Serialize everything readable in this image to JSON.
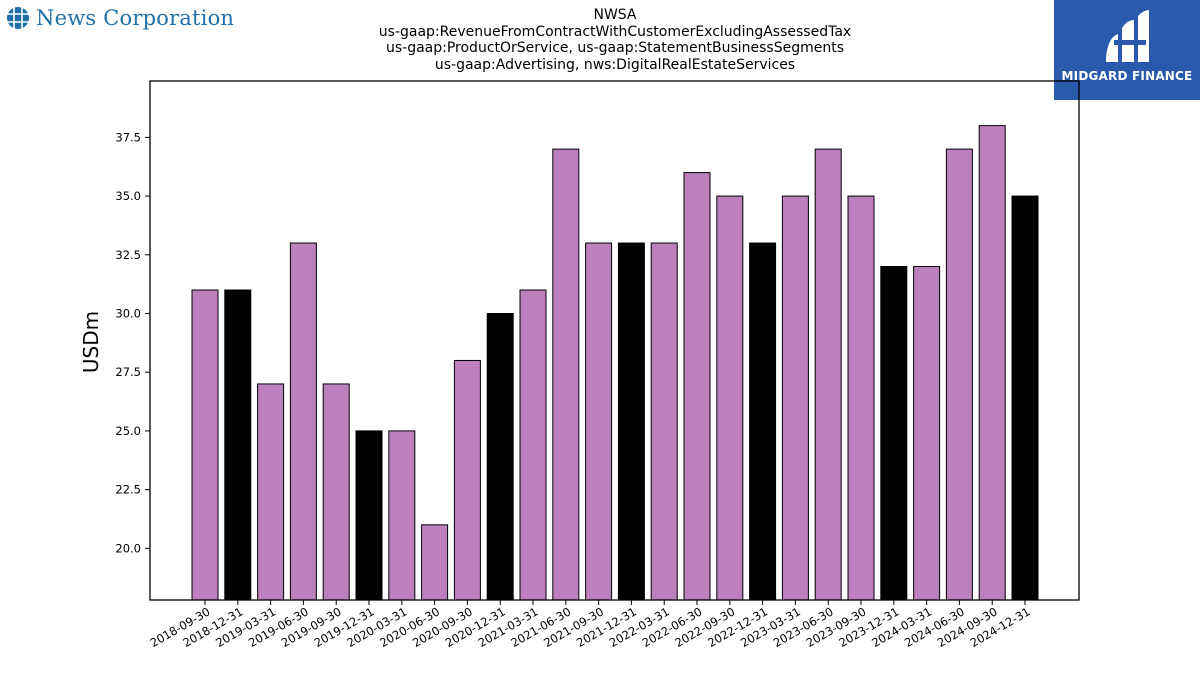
{
  "logo_left": {
    "text": "News Corporation",
    "icon": "globe-icon",
    "color": "#1f6fa8"
  },
  "logo_right": {
    "text": "MIDGARD FINANCE",
    "icon": "midgard-mark-icon",
    "background": "#2a5aac"
  },
  "title_lines": [
    "NWSA",
    "us-gaap:RevenueFromContractWithCustomerExcludingAssessedTax",
    "us-gaap:ProductOrService, us-gaap:StatementBusinessSegments",
    "us-gaap:Advertising, nws:DigitalRealEstateServices"
  ],
  "chart_data": {
    "type": "bar",
    "title": "NWSA\nus-gaap:RevenueFromContractWithCustomerExcludingAssessedTax\nus-gaap:ProductOrService, us-gaap:StatementBusinessSegments\nus-gaap:Advertising, nws:DigitalRealEstateServices",
    "xlabel": "",
    "ylabel": "USDm",
    "ylim": [
      17.8,
      39.9
    ],
    "yticks": [
      "20.0",
      "22.5",
      "25.0",
      "27.5",
      "30.0",
      "32.5",
      "35.0",
      "37.5"
    ],
    "grid": false,
    "categories": [
      "2018-09-30",
      "2018-12-31",
      "2019-03-31",
      "2019-06-30",
      "2019-09-30",
      "2019-12-31",
      "2020-03-31",
      "2020-06-30",
      "2020-09-30",
      "2020-12-31",
      "2021-03-31",
      "2021-06-30",
      "2021-09-30",
      "2021-12-31",
      "2022-03-31",
      "2022-06-30",
      "2022-09-30",
      "2022-12-31",
      "2023-03-31",
      "2023-06-30",
      "2023-09-30",
      "2023-12-31",
      "2024-03-31",
      "2024-06-30",
      "2024-09-30",
      "2024-12-31"
    ],
    "values": [
      31,
      31,
      27,
      33,
      27,
      25,
      25,
      21,
      28,
      30,
      31,
      37,
      33,
      33,
      33,
      36,
      35,
      33,
      35,
      37,
      35,
      32,
      32,
      37,
      38,
      35
    ],
    "bar_colors": [
      "#bb80bd",
      "#000000",
      "#bb80bd",
      "#bb80bd",
      "#bb80bd",
      "#000000",
      "#bb80bd",
      "#bb80bd",
      "#bb80bd",
      "#000000",
      "#bb80bd",
      "#bb80bd",
      "#bb80bd",
      "#000000",
      "#bb80bd",
      "#bb80bd",
      "#bb80bd",
      "#000000",
      "#bb80bd",
      "#bb80bd",
      "#bb80bd",
      "#000000",
      "#bb80bd",
      "#bb80bd",
      "#bb80bd",
      "#000000"
    ],
    "colors": {
      "quarter": "#bb80bd",
      "year_end": "#000000"
    }
  }
}
